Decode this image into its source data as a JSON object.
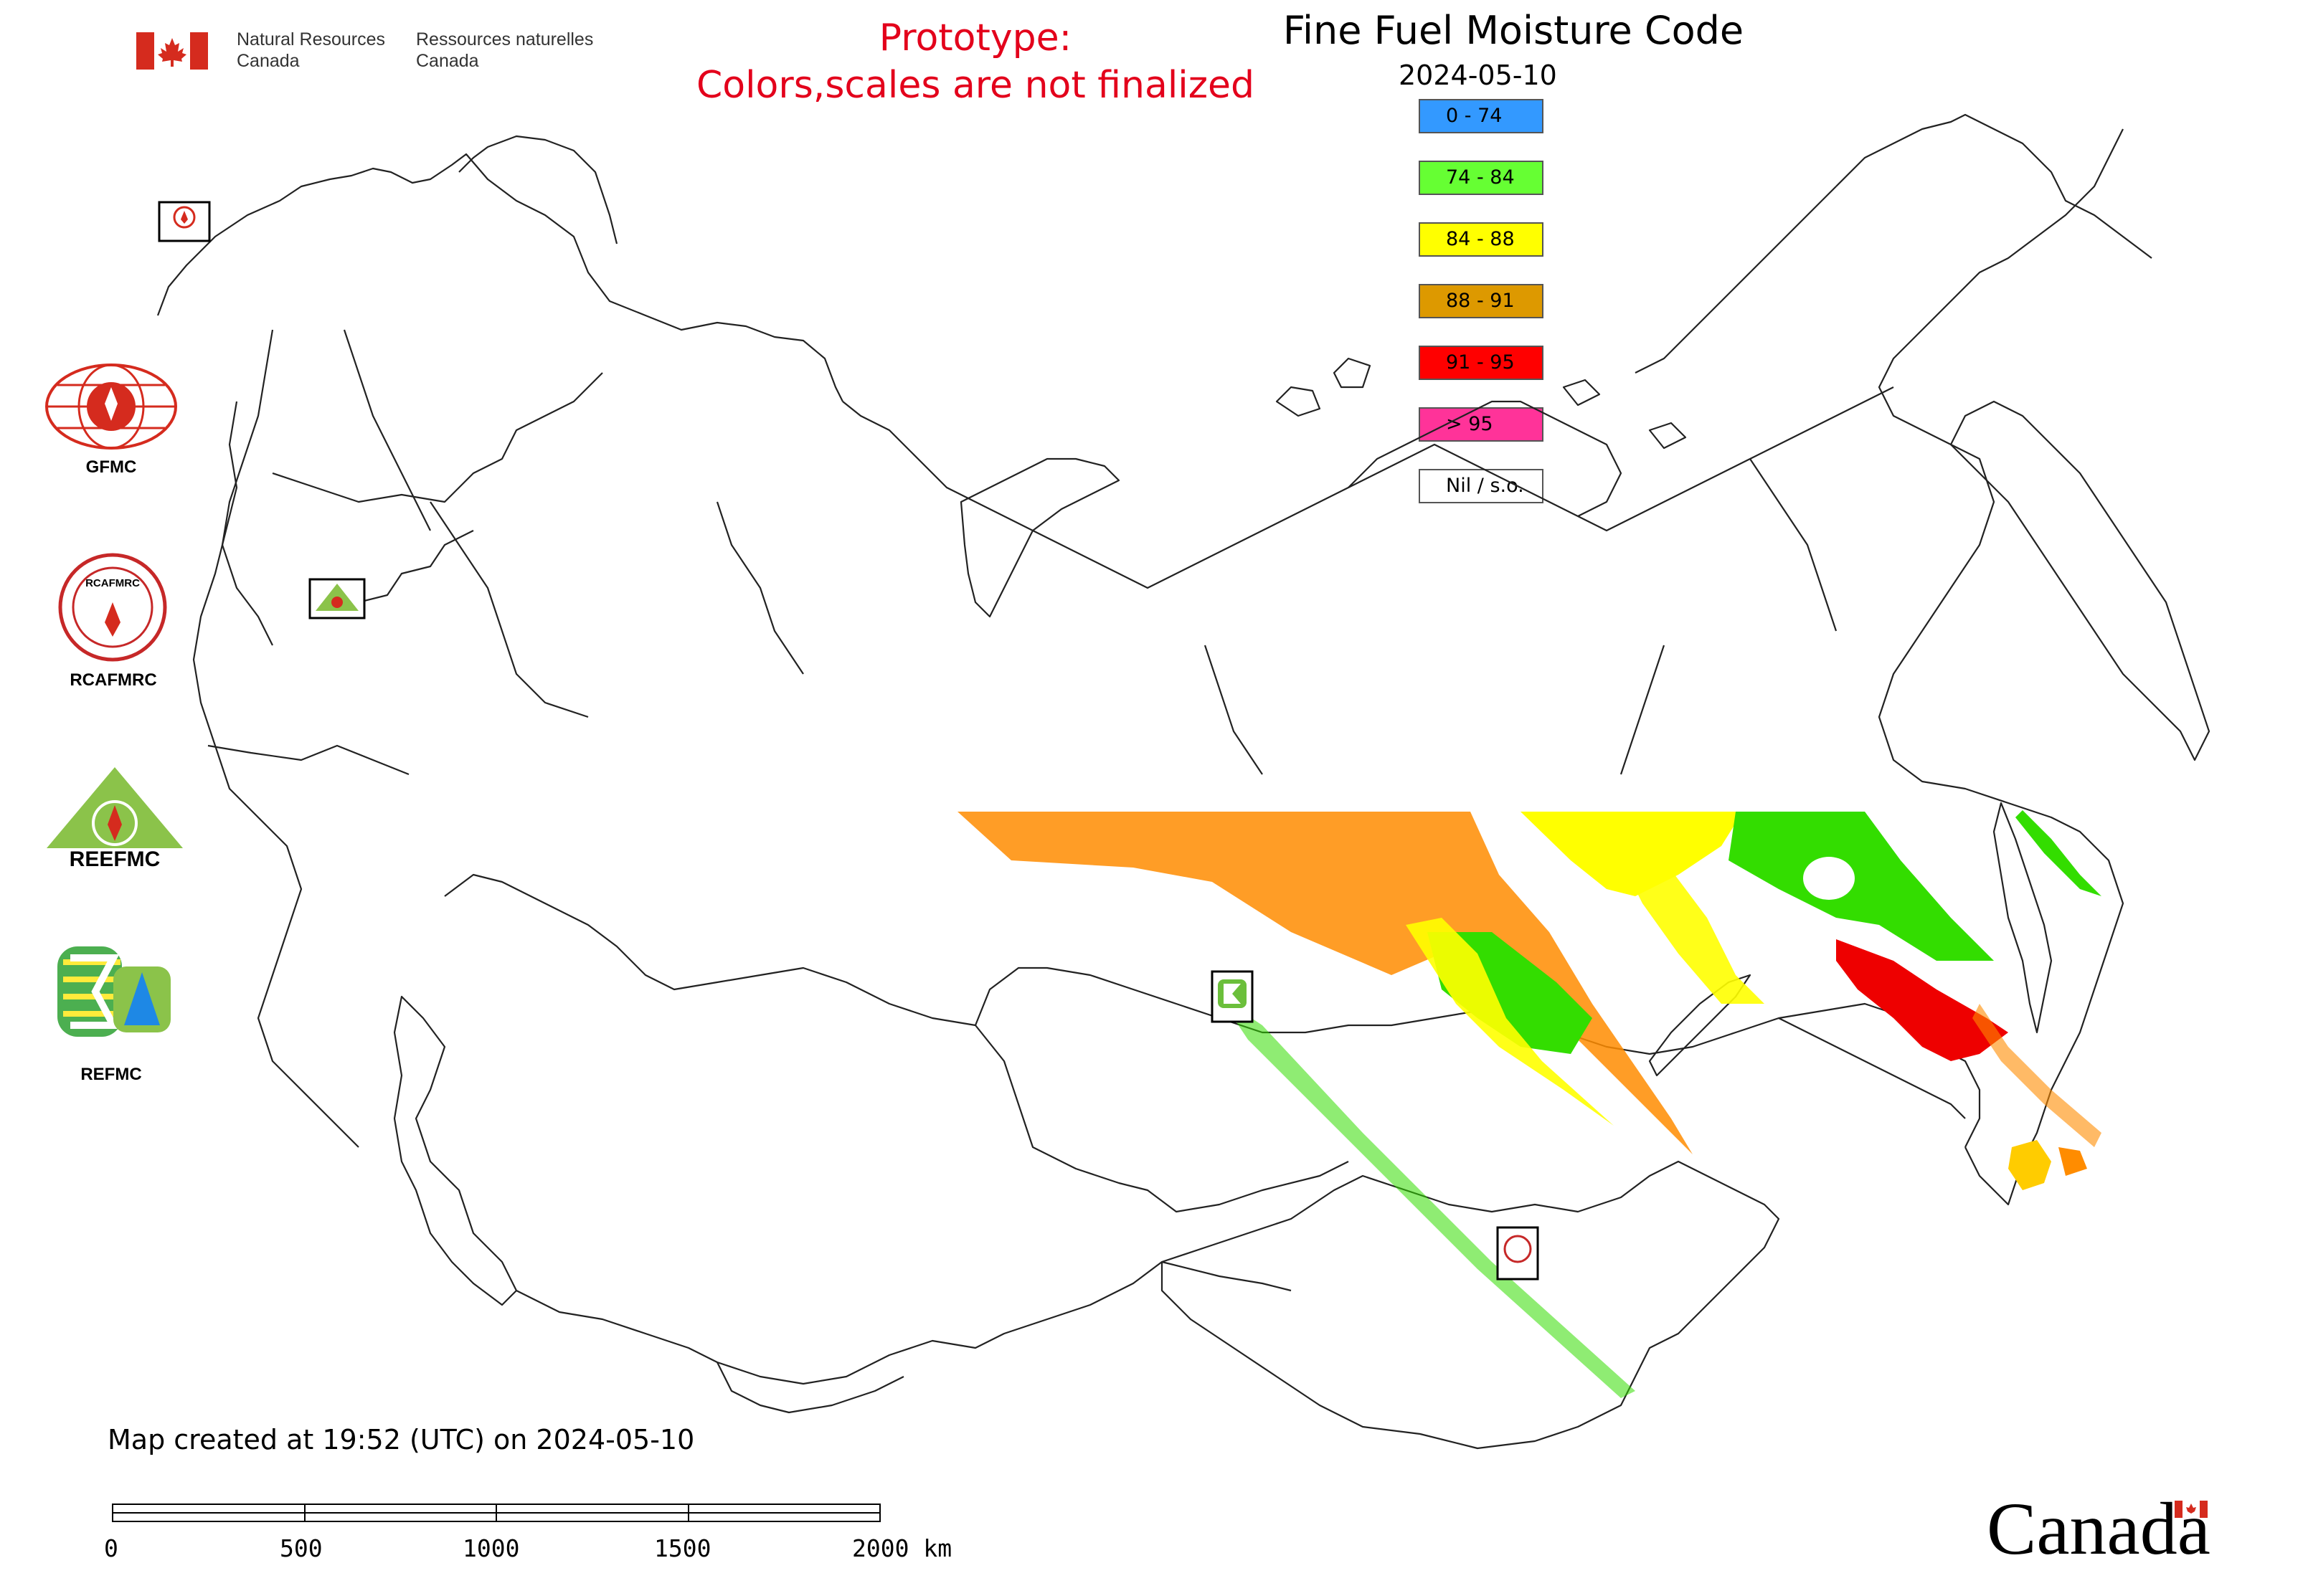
{
  "header": {
    "department_en_1": "Natural Resources",
    "department_en_2": "Canada",
    "department_fr_1": "Ressources naturelles",
    "department_fr_2": "Canada",
    "prototype_line1": "Prototype:",
    "prototype_line2": "Colors,scales are not finalized",
    "title": "Fine Fuel Moisture Code",
    "date": "2024-05-10"
  },
  "legend": [
    {
      "label": "0 - 74",
      "color": "#3399ff"
    },
    {
      "label": "74 - 84",
      "color": "#66ff33"
    },
    {
      "label": "84 - 88",
      "color": "#ffff00"
    },
    {
      "label": "88 - 91",
      "color": "#dd9900"
    },
    {
      "label": "91 - 95",
      "color": "#ff0000"
    },
    {
      "label": "> 95",
      "color": "#ff3399"
    },
    {
      "label": "Nil / s.o.",
      "color": "#ffffff"
    }
  ],
  "logos": {
    "gfmc": "GFMC",
    "rcafmrc": "RCAFMRC",
    "reefmc": "REEFMC",
    "refmc": "REFMC",
    "rcafmrc_ring": "RCAFMRC",
    "reefmc_word": "REEFMC"
  },
  "footer": {
    "created": "Map created at 19:52 (UTC) on 2024-05-10",
    "scale_labels": [
      "0",
      "500",
      "1000",
      "1500",
      "2000 km"
    ],
    "wordmark": "Canada"
  },
  "colors": {
    "title_red": "#e3001b",
    "flag_red": "#d52b1e",
    "fwi_orange": "#ff8c00",
    "fwi_green": "#33dd00",
    "fwi_yellow": "#ffff00",
    "fwi_red": "#ee0000"
  }
}
